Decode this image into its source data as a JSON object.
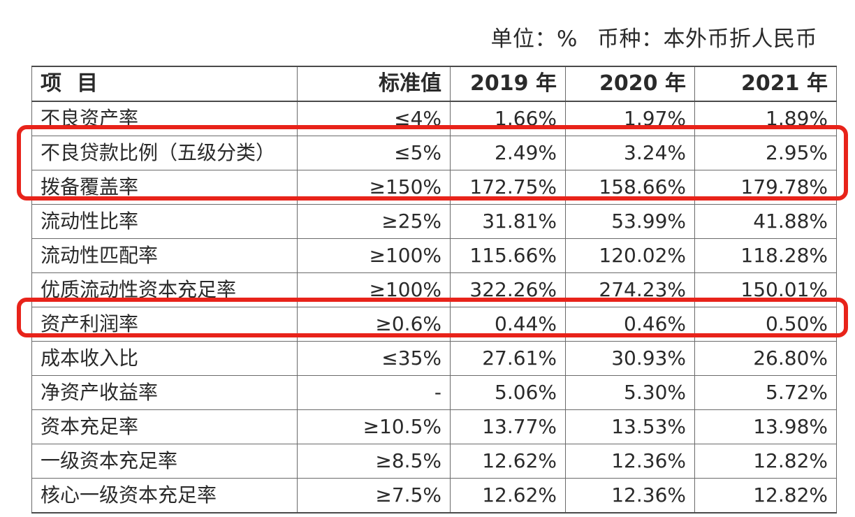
{
  "unit_line": {
    "unit": "单位：%",
    "currency": "币种：本外币折人民币"
  },
  "table": {
    "headers": [
      "项目",
      "标准值",
      "2019 年",
      "2020 年",
      "2021 年"
    ],
    "rows": [
      [
        "不良资产率",
        "≤4%",
        "1.66%",
        "1.97%",
        "1.89%"
      ],
      [
        "不良贷款比例（五级分类）",
        "≤5%",
        "2.49%",
        "3.24%",
        "2.95%"
      ],
      [
        "拨备覆盖率",
        "≥150%",
        "172.75%",
        "158.66%",
        "179.78%"
      ],
      [
        "流动性比率",
        "≥25%",
        "31.81%",
        "53.99%",
        "41.88%"
      ],
      [
        "流动性匹配率",
        "≥100%",
        "115.66%",
        "120.02%",
        "118.28%"
      ],
      [
        "优质流动性资本充足率",
        "≥100%",
        "322.26%",
        "274.23%",
        "150.01%"
      ],
      [
        "资产利润率",
        "≥0.6%",
        "0.44%",
        "0.46%",
        "0.50%"
      ],
      [
        "成本收入比",
        "≤35%",
        "27.61%",
        "30.93%",
        "26.80%"
      ],
      [
        "净资产收益率",
        "-",
        "5.06%",
        "5.30%",
        "5.72%"
      ],
      [
        "资本充足率",
        "≥10.5%",
        "13.77%",
        "13.53%",
        "13.98%"
      ],
      [
        "一级资本充足率",
        "≥8.5%",
        "12.62%",
        "12.36%",
        "12.82%"
      ],
      [
        "核心一级资本充足率",
        "≥7.5%",
        "12.62%",
        "12.36%",
        "12.82%"
      ]
    ]
  },
  "highlight_color": "#e8231a"
}
